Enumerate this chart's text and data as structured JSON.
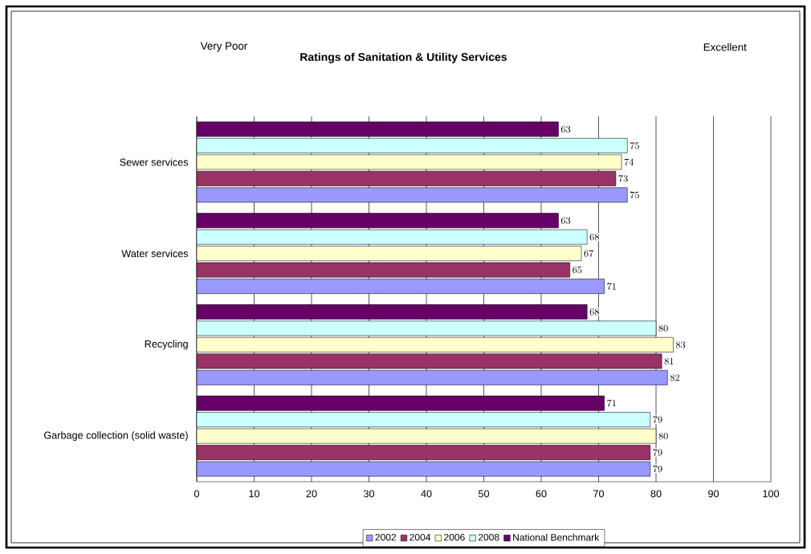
{
  "chart_data": {
    "type": "bar",
    "orientation": "horizontal",
    "title": "Ratings of Sanitation & Utility Services",
    "annotations": [
      "Very Poor",
      "Excellent"
    ],
    "categories": [
      "Sewer services",
      "Water services",
      "Recycling",
      "Garbage collection (solid waste)"
    ],
    "series": [
      {
        "name": "2002",
        "color": "#9999ff",
        "values": [
          75,
          71,
          82,
          79
        ]
      },
      {
        "name": "2004",
        "color": "#993366",
        "values": [
          73,
          65,
          81,
          79
        ]
      },
      {
        "name": "2006",
        "color": "#ffffcc",
        "values": [
          74,
          67,
          83,
          80
        ]
      },
      {
        "name": "2008",
        "color": "#ccffff",
        "values": [
          75,
          68,
          80,
          79
        ]
      },
      {
        "name": "National Benchmark",
        "color": "#660066",
        "values": [
          63,
          63,
          68,
          71
        ]
      }
    ],
    "xlim": [
      0,
      100
    ],
    "xticks": [
      0,
      10,
      20,
      30,
      40,
      50,
      60,
      70,
      80,
      90,
      100
    ],
    "grid": "x",
    "legend": "bottom",
    "data_labels": true
  }
}
